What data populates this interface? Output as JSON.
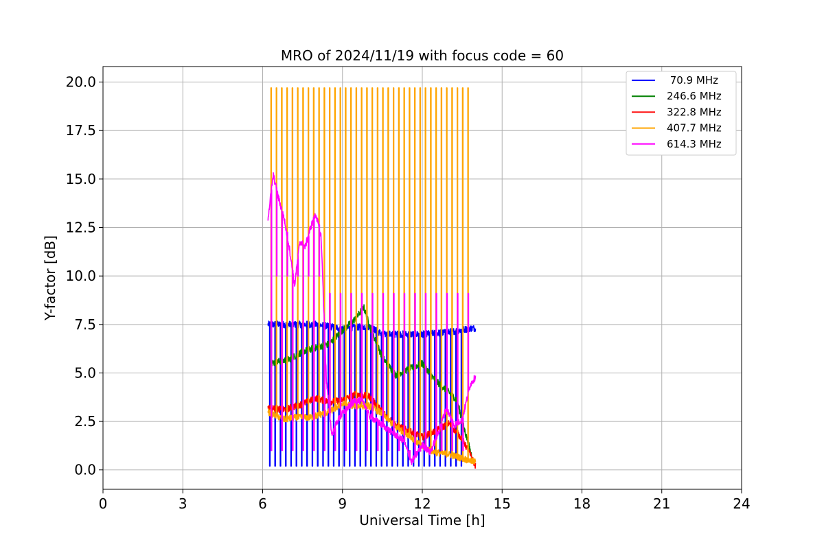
{
  "chart_data": {
    "type": "line",
    "title": "MRO of 2024/11/19 with focus code = 60",
    "xlabel": "Universal Time [h]",
    "ylabel": "Y-factor [dB]",
    "xlim": [
      0,
      24
    ],
    "ylim": [
      -1,
      20.8
    ],
    "xticks": [
      0,
      3,
      6,
      9,
      12,
      15,
      18,
      21,
      24
    ],
    "xtick_labels": [
      "0",
      "3",
      "6",
      "9",
      "12",
      "15",
      "18",
      "21",
      "24"
    ],
    "yticks": [
      0.0,
      2.5,
      5.0,
      7.5,
      10.0,
      12.5,
      15.0,
      17.5,
      20.0
    ],
    "ytick_labels": [
      "0.0",
      "2.5",
      "5.0",
      "7.5",
      "10.0",
      "12.5",
      "15.0",
      "17.5",
      "20.0"
    ],
    "grid": true,
    "legend_position": "top-right",
    "spike_interval_h": 0.2,
    "series": [
      {
        "name": " 70.9 MHz",
        "color": "#0000ff",
        "x": [
          6.2,
          7.0,
          8.0,
          9.0,
          10.0,
          10.5,
          11.0,
          12.0,
          13.0,
          13.8,
          14.0
        ],
        "values": [
          7.5,
          7.5,
          7.5,
          7.3,
          7.4,
          7.0,
          7.0,
          7.0,
          7.1,
          7.3,
          7.3
        ],
        "spike_low": 0.2,
        "spike_end": 13.5
      },
      {
        "name": "246.6 MHz",
        "color": "#008000",
        "x": [
          6.3,
          7.0,
          7.5,
          8.0,
          8.5,
          9.0,
          9.5,
          9.8,
          10.0,
          10.5,
          11.0,
          11.5,
          12.0,
          12.5,
          13.0,
          13.3,
          13.6,
          13.9
        ],
        "values": [
          5.5,
          5.7,
          6.1,
          6.3,
          6.5,
          7.2,
          7.8,
          8.4,
          7.5,
          5.8,
          4.9,
          5.2,
          5.5,
          4.6,
          4.0,
          3.6,
          2.0,
          0.5
        ],
        "spike_low": null,
        "spike_end": null
      },
      {
        "name": "322.8 MHz",
        "color": "#ff0000",
        "x": [
          6.2,
          6.8,
          7.5,
          8.0,
          8.5,
          9.0,
          9.5,
          10.0,
          10.5,
          11.0,
          11.5,
          12.0,
          12.5,
          13.0,
          13.5,
          13.8,
          14.0
        ],
        "values": [
          3.2,
          3.1,
          3.4,
          3.7,
          3.5,
          3.6,
          3.9,
          3.8,
          3.0,
          2.3,
          2.0,
          1.7,
          2.0,
          2.4,
          1.6,
          0.8,
          0.2
        ],
        "spike_low": null,
        "spike_end": null
      },
      {
        "name": "407.7 MHz",
        "color": "#ffa500",
        "x": [
          6.2,
          6.8,
          7.2,
          7.8,
          8.5,
          9.0,
          9.5,
          10.0,
          10.5,
          11.0,
          11.5,
          12.0,
          12.5,
          13.0,
          13.5,
          14.0
        ],
        "values": [
          3.0,
          2.6,
          2.7,
          2.7,
          3.0,
          3.4,
          3.3,
          3.3,
          2.9,
          2.2,
          1.8,
          1.2,
          0.9,
          0.8,
          0.6,
          0.4
        ],
        "spike_high": 19.7,
        "spike_end": 13.8
      },
      {
        "name": "614.3 MHz",
        "color": "#ff00ff",
        "x": [
          6.2,
          6.4,
          6.6,
          6.8,
          7.0,
          7.2,
          7.4,
          7.6,
          7.8,
          8.0,
          8.2,
          8.4,
          8.6,
          8.8,
          9.0,
          9.2,
          9.5,
          9.8,
          10.0,
          10.3,
          10.6,
          11.0,
          11.3,
          11.6,
          12.0,
          12.3,
          12.6,
          12.9,
          13.2,
          13.5,
          13.8,
          14.0
        ],
        "values": [
          13.0,
          15.2,
          14.0,
          13.0,
          11.5,
          9.5,
          11.8,
          11.5,
          12.5,
          13.2,
          12.0,
          4.5,
          1.8,
          2.5,
          2.9,
          3.2,
          3.6,
          3.5,
          2.8,
          2.5,
          2.2,
          1.8,
          1.5,
          0.4,
          1.3,
          0.9,
          1.9,
          3.2,
          2.3,
          2.6,
          4.4,
          4.8
        ],
        "spike_high_early": 10.0,
        "spike_high_late": 9.1,
        "spike_low": 1.0,
        "spike_end": 13.9
      }
    ]
  }
}
